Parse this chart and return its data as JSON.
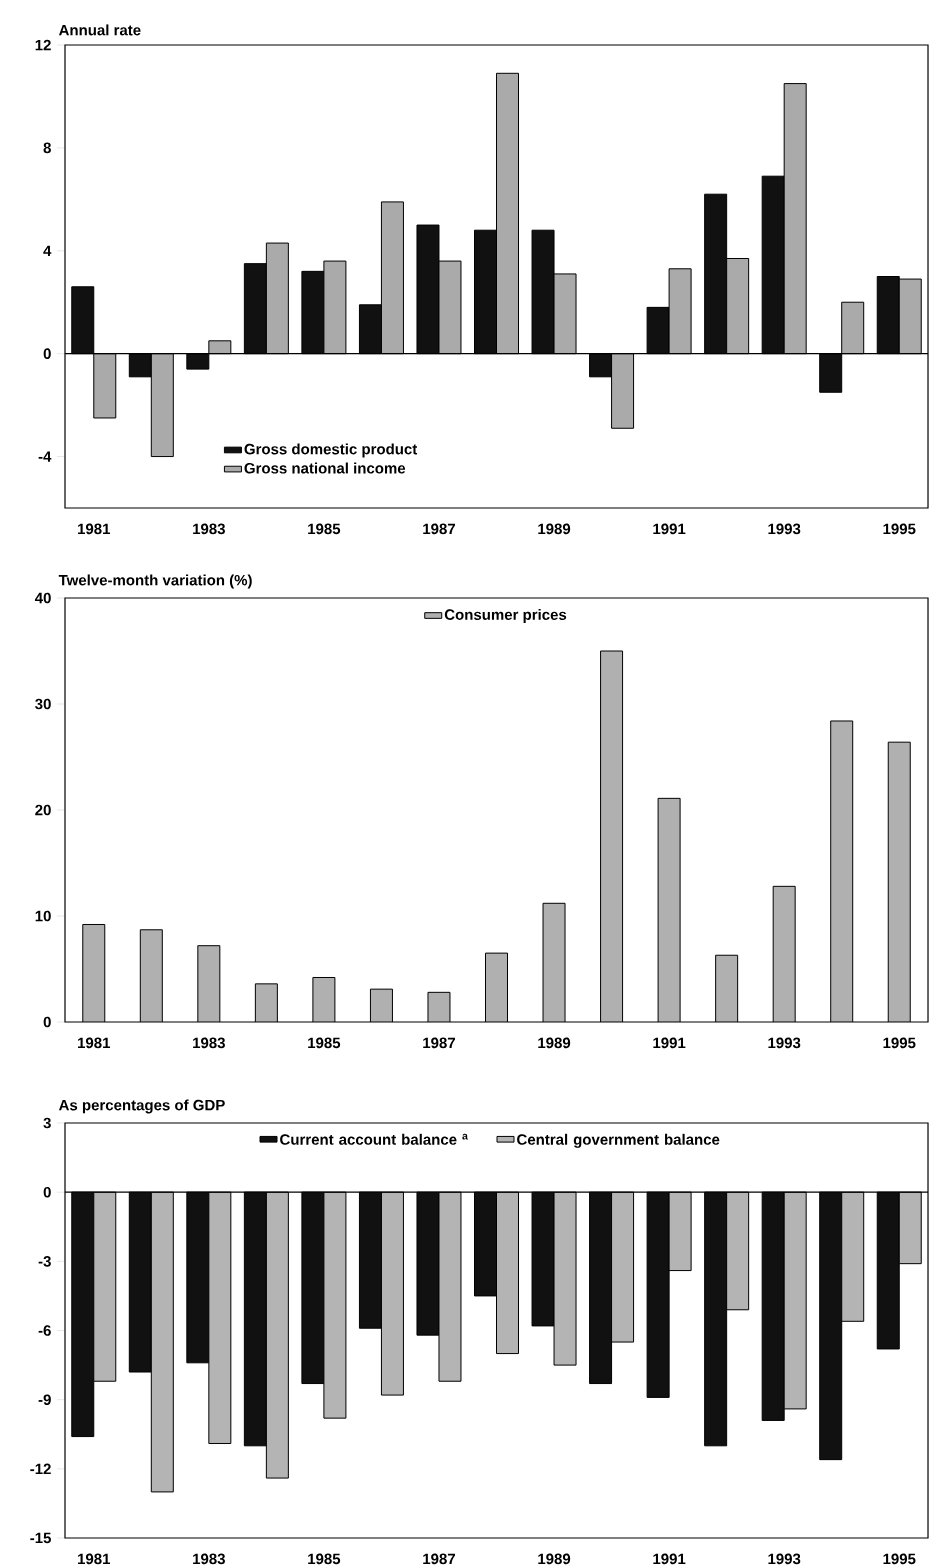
{
  "chart_data": [
    {
      "type": "bar",
      "title": "Annual rate",
      "categories": [
        "1981",
        null,
        "1983",
        null,
        "1985",
        null,
        "1987",
        null,
        "1989",
        null,
        "1991",
        null,
        "1993",
        null,
        "1995"
      ],
      "series": [
        {
          "name": "Gross domestic product",
          "color": "#111111",
          "values": [
            2.6,
            -0.9,
            -0.6,
            3.5,
            3.2,
            1.9,
            5.0,
            4.8,
            4.8,
            -0.9,
            1.8,
            6.2,
            6.9,
            -1.5,
            3.0
          ]
        },
        {
          "name": "Gross national income",
          "color": "#aaaaaa",
          "values": [
            -2.5,
            -4.0,
            0.5,
            4.3,
            3.6,
            5.9,
            3.6,
            10.9,
            3.1,
            -2.9,
            3.3,
            3.7,
            10.5,
            2.0,
            2.9
          ]
        }
      ],
      "ylim": [
        -6,
        12
      ],
      "yticks": [
        -4,
        0,
        4,
        8,
        12
      ],
      "legend": "bottom left"
    },
    {
      "type": "bar",
      "title": "Twelve-month variation (%)",
      "categories": [
        "1981",
        null,
        "1983",
        null,
        "1985",
        null,
        "1987",
        null,
        "1989",
        null,
        "1991",
        null,
        "1993",
        null,
        "1995"
      ],
      "series": [
        {
          "name": "Consumer prices",
          "color": "#b0b0b0",
          "values": [
            9.2,
            8.7,
            7.2,
            3.6,
            4.2,
            3.1,
            2.8,
            6.5,
            11.2,
            35.0,
            21.1,
            6.3,
            12.8,
            28.4,
            26.4
          ]
        }
      ],
      "ylim": [
        0,
        40
      ],
      "yticks": [
        0,
        10,
        20,
        30,
        40
      ],
      "legend": "top"
    },
    {
      "type": "bar",
      "title": "As percentages of GDP",
      "categories": [
        "1981",
        null,
        "1983",
        null,
        "1985",
        null,
        "1987",
        null,
        "1989",
        null,
        "1991",
        null,
        "1993",
        null,
        "1995"
      ],
      "series": [
        {
          "name": "Current account balance $^{a}$",
          "color": "#111111",
          "values": [
            -10.6,
            -7.8,
            -7.4,
            -11.0,
            -8.3,
            -5.9,
            -6.2,
            -4.5,
            -5.8,
            -8.3,
            -8.9,
            -11.0,
            -9.9,
            -11.6,
            -6.8
          ]
        },
        {
          "name": "Central government balance",
          "color": "#b4b4b4",
          "values": [
            -8.2,
            -13.0,
            -10.9,
            -12.4,
            -9.8,
            -8.8,
            -8.2,
            -7.0,
            -7.5,
            -6.5,
            -3.4,
            -5.1,
            -9.4,
            -5.6,
            -3.1
          ]
        }
      ],
      "ylim": [
        -15,
        3
      ],
      "yticks": [
        -15,
        -12,
        -9,
        -6,
        -3,
        0,
        3
      ],
      "legend": "top"
    }
  ]
}
